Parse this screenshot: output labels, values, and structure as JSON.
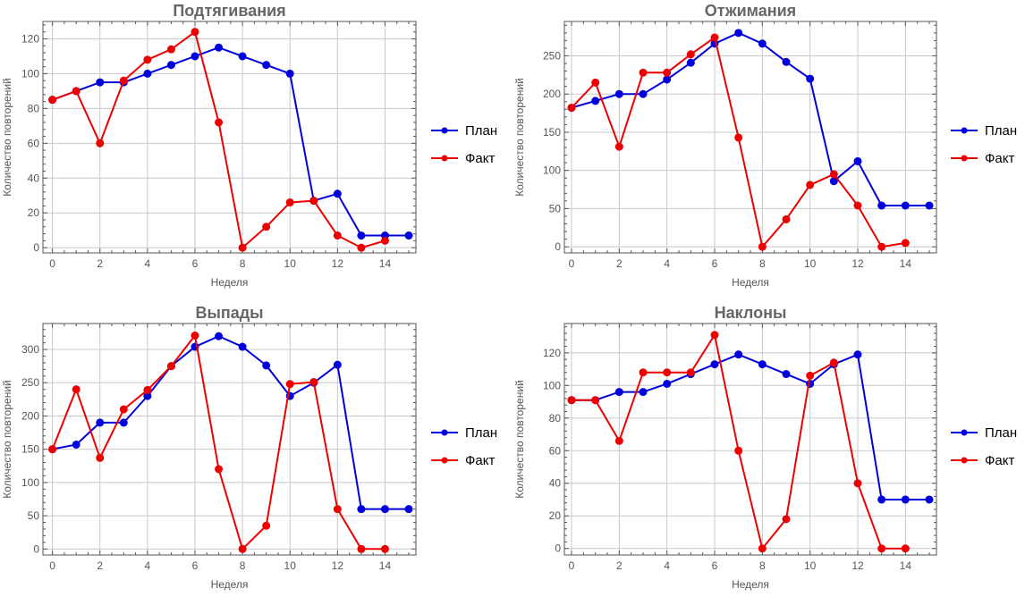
{
  "legend": {
    "plan_label": "План",
    "fact_label": "Факт"
  },
  "colors": {
    "plan": "#0000dd",
    "fact": "#ee0000",
    "grid": "#c8c8c8",
    "frame": "#555555",
    "text": "#555555"
  },
  "chart_data": [
    {
      "type": "line",
      "title": "Подтягивания",
      "xlabel": "Неделя",
      "ylabel": "Количество повторений",
      "xlim": [
        -0.4,
        15.3
      ],
      "ylim": [
        -3,
        130
      ],
      "xticks": [
        0,
        2,
        4,
        6,
        8,
        10,
        12,
        14
      ],
      "yticks": [
        0,
        20,
        40,
        60,
        80,
        100,
        120
      ],
      "grid": true,
      "legend_position": "right",
      "series": [
        {
          "name": "План",
          "x": [
            0,
            1,
            2,
            3,
            4,
            5,
            6,
            7,
            8,
            9,
            10,
            11,
            12,
            13,
            14,
            15
          ],
          "values": [
            85,
            90,
            95,
            95,
            100,
            105,
            110,
            115,
            110,
            105,
            100,
            27,
            31,
            7,
            7,
            7
          ]
        },
        {
          "name": "Факт",
          "x": [
            0,
            1,
            2,
            3,
            4,
            5,
            6,
            7,
            8,
            9,
            10,
            11,
            12,
            13,
            14
          ],
          "values": [
            85,
            90,
            60,
            96,
            108,
            114,
            124,
            72,
            0,
            12,
            26,
            27,
            7,
            0,
            4
          ]
        }
      ]
    },
    {
      "type": "line",
      "title": "Отжимания",
      "xlabel": "Неделя",
      "ylabel": "Количество повторений",
      "xlim": [
        -0.3,
        15.3
      ],
      "ylim": [
        -8,
        295
      ],
      "xticks": [
        0,
        2,
        4,
        6,
        8,
        10,
        12,
        14
      ],
      "yticks": [
        0,
        50,
        100,
        150,
        200,
        250
      ],
      "grid": true,
      "legend_position": "right",
      "series": [
        {
          "name": "План",
          "x": [
            0,
            1,
            2,
            3,
            4,
            5,
            6,
            7,
            8,
            9,
            10,
            11,
            12,
            13,
            14,
            15
          ],
          "values": [
            182,
            191,
            200,
            200,
            219,
            241,
            266,
            280,
            266,
            242,
            220,
            86,
            112,
            54,
            54,
            54
          ]
        },
        {
          "name": "Факт",
          "x": [
            0,
            1,
            2,
            3,
            4,
            5,
            6,
            7,
            8,
            9,
            10,
            11,
            12,
            13,
            14
          ],
          "values": [
            182,
            215,
            131,
            228,
            228,
            252,
            274,
            143,
            0,
            36,
            81,
            95,
            54,
            0,
            5
          ]
        }
      ]
    },
    {
      "type": "line",
      "title": "Выпады",
      "xlabel": "Неделя",
      "ylabel": "Количество повторений",
      "xlim": [
        -0.4,
        15.3
      ],
      "ylim": [
        -9,
        339
      ],
      "xticks": [
        0,
        2,
        4,
        6,
        8,
        10,
        12,
        14
      ],
      "yticks": [
        0,
        50,
        100,
        150,
        200,
        250,
        300
      ],
      "grid": true,
      "legend_position": "right",
      "series": [
        {
          "name": "План",
          "x": [
            0,
            1,
            2,
            3,
            4,
            5,
            6,
            7,
            8,
            9,
            10,
            11,
            12,
            13,
            14,
            15
          ],
          "values": [
            150,
            157,
            190,
            190,
            230,
            275,
            304,
            320,
            304,
            276,
            230,
            250,
            277,
            60,
            60,
            60
          ]
        },
        {
          "name": "Факт",
          "x": [
            0,
            1,
            2,
            3,
            4,
            5,
            6,
            7,
            8,
            9,
            10,
            11,
            12,
            13,
            14
          ],
          "values": [
            150,
            240,
            137,
            210,
            239,
            275,
            321,
            120,
            0,
            35,
            248,
            251,
            60,
            0,
            0
          ]
        }
      ]
    },
    {
      "type": "line",
      "title": "Наклоны",
      "xlabel": "Неделя",
      "ylabel": "Количество повторений",
      "xlim": [
        -0.3,
        15.3
      ],
      "ylim": [
        -4,
        138
      ],
      "xticks": [
        0,
        2,
        4,
        6,
        8,
        10,
        12,
        14
      ],
      "yticks": [
        0,
        20,
        40,
        60,
        80,
        100,
        120
      ],
      "grid": true,
      "legend_position": "right",
      "series": [
        {
          "name": "План",
          "x": [
            0,
            1,
            2,
            3,
            4,
            5,
            6,
            7,
            8,
            9,
            10,
            11,
            12,
            13,
            14,
            15
          ],
          "values": [
            91,
            91,
            96,
            96,
            101,
            107,
            113,
            119,
            113,
            107,
            101,
            113,
            119,
            30,
            30,
            30
          ]
        },
        {
          "name": "Факт",
          "x": [
            0,
            1,
            2,
            3,
            4,
            5,
            6,
            7,
            8,
            9,
            10,
            11,
            12,
            13,
            14
          ],
          "values": [
            91,
            91,
            66,
            108,
            108,
            108,
            131,
            60,
            0,
            18,
            106,
            114,
            40,
            0,
            0
          ]
        }
      ]
    }
  ]
}
